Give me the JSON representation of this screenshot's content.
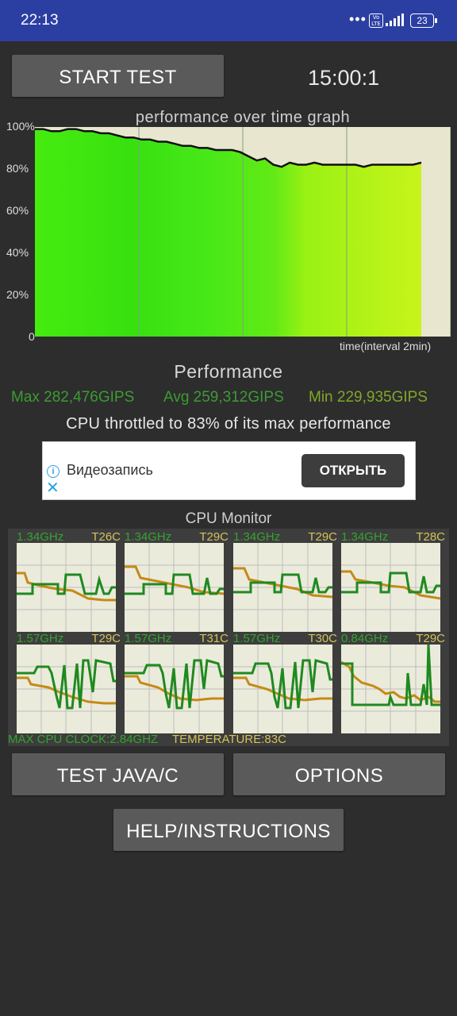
{
  "status_bar": {
    "time": "22:13",
    "dots": "•••",
    "volte": "Vo LTE",
    "battery": "23"
  },
  "controls": {
    "start_label": "START TEST",
    "timer": "15:00:1"
  },
  "graph": {
    "title": "performance over time graph",
    "y_labels": [
      "100%",
      "80%",
      "60%",
      "40%",
      "20%",
      "0"
    ],
    "x_label": "time(interval 2min)"
  },
  "performance": {
    "title": "Performance",
    "max": "Max 282,476GIPS",
    "avg": "Avg 259,312GIPS",
    "min": "Min 229,935GIPS",
    "throttle_text": "CPU throttled to 83% of its max performance"
  },
  "ad": {
    "text": "Видеозапись",
    "button": "ОТКРЫТЬ"
  },
  "cpu_monitor": {
    "title": "CPU Monitor",
    "cores": [
      {
        "freq": "1.34GHz",
        "temp": "T26C"
      },
      {
        "freq": "1.34GHz",
        "temp": "T29C"
      },
      {
        "freq": "1.34GHz",
        "temp": "T29C"
      },
      {
        "freq": "1.34GHz",
        "temp": "T28C"
      },
      {
        "freq": "1.57GHz",
        "temp": "T29C"
      },
      {
        "freq": "1.57GHz",
        "temp": "T31C"
      },
      {
        "freq": "1.57GHz",
        "temp": "T30C"
      },
      {
        "freq": "0.84GHz",
        "temp": "T29C"
      }
    ],
    "max_clock": "MAX CPU CLOCK:2.84GHZ",
    "temperature": "TEMPERATURE:83C"
  },
  "buttons": {
    "test_java": "TEST JAVA/C",
    "options": "OPTIONS",
    "help": "HELP/INSTRUCTIONS"
  },
  "colors": {
    "status_bar": "#2b3fa3",
    "background": "#2d2d2d",
    "button": "#5a5a5a",
    "green_text": "#3d9b32",
    "yellow_text": "#d6c25a"
  },
  "chart_data": {
    "type": "line",
    "title": "performance over time graph",
    "xlabel": "time(interval 2min)",
    "ylabel": "",
    "ylim": [
      0,
      100
    ],
    "series": [
      {
        "values": [
          99,
          99,
          98,
          98,
          99,
          99,
          98,
          98,
          97,
          97,
          96,
          95,
          95,
          94,
          94,
          93,
          93,
          92,
          91,
          91,
          90,
          90,
          89,
          89,
          89,
          88,
          86,
          84,
          85,
          82,
          81,
          83,
          82,
          82,
          83,
          82,
          82,
          82,
          82,
          82,
          81,
          82,
          82,
          82,
          82,
          82,
          82,
          83
        ]
      }
    ]
  }
}
